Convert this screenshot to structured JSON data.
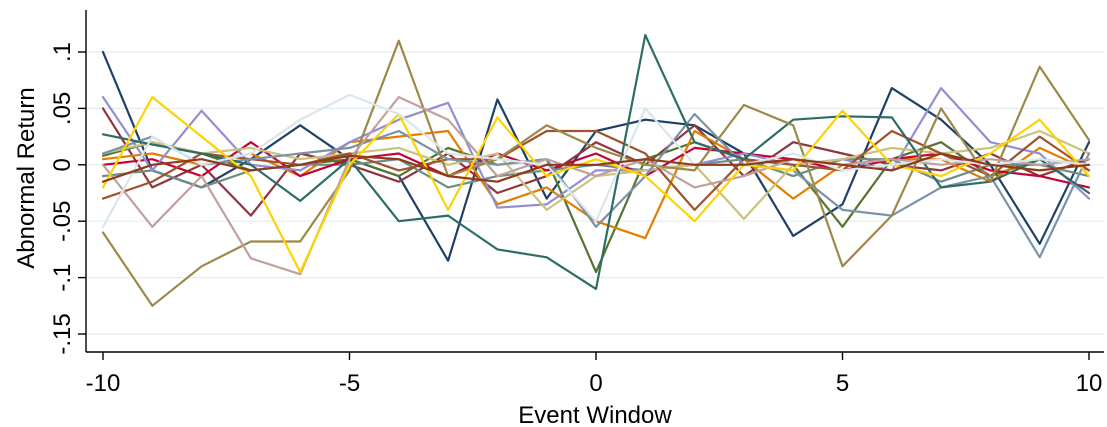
{
  "chart_data": {
    "type": "line",
    "title": "",
    "xlabel": "Event Window",
    "ylabel": "Abnormal Return",
    "xlim": [
      -10,
      10
    ],
    "ylim": [
      -0.15,
      0.1
    ],
    "x_ticks": [
      -10,
      -5,
      0,
      5,
      10
    ],
    "x_tick_labels": [
      "-10",
      "-5",
      "0",
      "5",
      "10"
    ],
    "y_ticks": [
      -0.15,
      -0.1,
      -0.05,
      0,
      0.05,
      0.1
    ],
    "y_tick_labels": [
      "-.15",
      "-.1",
      "-.05",
      "0",
      ".05",
      ".1"
    ],
    "grid": true,
    "legend": "none",
    "x": [
      -10,
      -9,
      -8,
      -7,
      -6,
      -5,
      -4,
      -3,
      -2,
      -1,
      0,
      1,
      2,
      3,
      4,
      5,
      6,
      7,
      8,
      9,
      10
    ],
    "series": [
      {
        "color": "#1f3f66",
        "values": [
          0.1,
          -0.005,
          -0.02,
          0.005,
          0.035,
          0.005,
          -0.01,
          -0.085,
          0.058,
          -0.03,
          0.03,
          0.04,
          0.035,
          0.01,
          -0.063,
          -0.035,
          0.068,
          0.04,
          0.0,
          -0.07,
          0.02
        ]
      },
      {
        "color": "#90353b",
        "values": [
          0.05,
          -0.02,
          0.0,
          -0.045,
          0.01,
          0.0,
          -0.015,
          0.01,
          -0.025,
          -0.01,
          0.02,
          0.0,
          0.035,
          -0.01,
          0.02,
          0.01,
          0.0,
          -0.005,
          0.01,
          -0.01,
          0.005
        ]
      },
      {
        "color": "#55752f",
        "values": [
          0.008,
          0.02,
          0.01,
          -0.005,
          0.0,
          0.005,
          -0.01,
          0.015,
          0.0,
          0.005,
          -0.095,
          0.005,
          0.02,
          0.005,
          0.0,
          -0.055,
          0.005,
          0.02,
          -0.01,
          0.005,
          0.0
        ]
      },
      {
        "color": "#e37e00",
        "values": [
          0.005,
          0.01,
          0.0,
          0.01,
          -0.01,
          0.02,
          0.025,
          0.03,
          -0.035,
          -0.02,
          -0.05,
          -0.065,
          0.03,
          0.005,
          -0.03,
          0.0,
          0.005,
          0.005,
          -0.015,
          0.015,
          -0.005
        ]
      },
      {
        "color": "#6e8e84",
        "values": [
          -0.01,
          -0.005,
          -0.02,
          -0.005,
          0.0,
          0.0,
          0.005,
          -0.02,
          -0.01,
          -0.005,
          0.0,
          -0.005,
          0.0,
          0.005,
          -0.01,
          0.005,
          0.005,
          -0.015,
          0.0,
          0.0,
          -0.01
        ]
      },
      {
        "color": "#c10534",
        "values": [
          0.0,
          0.005,
          -0.01,
          0.02,
          -0.01,
          0.005,
          0.01,
          -0.01,
          0.01,
          -0.005,
          0.01,
          -0.01,
          0.015,
          0.01,
          0.005,
          -0.005,
          0.005,
          0.01,
          -0.005,
          -0.01,
          -0.02
        ]
      },
      {
        "color": "#938dd2",
        "values": [
          0.06,
          -0.005,
          0.048,
          0.0,
          -0.005,
          0.02,
          0.04,
          0.055,
          -0.038,
          -0.035,
          -0.005,
          -0.005,
          0.0,
          0.01,
          0.0,
          0.005,
          -0.005,
          0.068,
          0.02,
          0.01,
          -0.03
        ]
      },
      {
        "color": "#cac27e",
        "values": [
          0.01,
          0.02,
          0.01,
          0.015,
          0.005,
          0.01,
          0.015,
          0.0,
          0.01,
          -0.04,
          -0.01,
          -0.005,
          0.0,
          -0.048,
          0.0,
          0.005,
          0.015,
          0.01,
          0.015,
          0.03,
          0.01
        ]
      },
      {
        "color": "#a0522d",
        "values": [
          -0.03,
          -0.015,
          0.01,
          0.005,
          0.0,
          0.01,
          -0.005,
          0.005,
          0.005,
          0.03,
          0.03,
          0.01,
          -0.04,
          0.005,
          0.0,
          -0.005,
          0.03,
          0.01,
          -0.01,
          0.025,
          -0.005
        ]
      },
      {
        "color": "#7b92a8",
        "values": [
          0.01,
          0.025,
          0.0,
          0.005,
          0.01,
          0.015,
          0.03,
          0.005,
          0.0,
          0.005,
          -0.055,
          -0.01,
          0.045,
          0.0,
          -0.005,
          -0.04,
          -0.045,
          -0.02,
          -0.01,
          -0.082,
          0.01
        ]
      },
      {
        "color": "#2d6d66",
        "values": [
          0.027,
          0.018,
          0.01,
          0.0,
          -0.032,
          0.005,
          -0.05,
          -0.045,
          -0.075,
          -0.082,
          -0.11,
          0.115,
          0.02,
          0.005,
          0.04,
          0.043,
          0.042,
          -0.02,
          -0.015,
          0.005,
          -0.025
        ]
      },
      {
        "color": "#9c8847",
        "values": [
          -0.06,
          -0.125,
          -0.09,
          -0.068,
          -0.068,
          -0.005,
          0.11,
          -0.01,
          0.005,
          0.035,
          0.015,
          0.0,
          -0.005,
          0.053,
          0.035,
          -0.09,
          -0.045,
          0.05,
          -0.015,
          0.087,
          0.022
        ]
      },
      {
        "color": "#bfa19c",
        "values": [
          0.0,
          -0.055,
          -0.01,
          -0.083,
          -0.097,
          0.005,
          0.06,
          0.04,
          -0.01,
          0.005,
          -0.01,
          0.005,
          -0.02,
          -0.01,
          0.005,
          0.0,
          0.005,
          0.0,
          0.005,
          0.0,
          0.005
        ]
      },
      {
        "color": "#ffd200",
        "values": [
          -0.02,
          0.06,
          0.025,
          -0.01,
          -0.095,
          0.0,
          0.045,
          -0.04,
          0.042,
          -0.01,
          0.005,
          -0.01,
          -0.05,
          0.0,
          -0.005,
          0.048,
          0.0,
          -0.01,
          0.01,
          0.04,
          -0.01
        ]
      },
      {
        "color": "#d9e6eb",
        "values": [
          -0.055,
          0.025,
          0.0,
          0.01,
          0.04,
          0.062,
          0.045,
          0.01,
          0.005,
          0.0,
          -0.05,
          0.05,
          0.0,
          0.0,
          0.01,
          -0.005,
          0.0,
          0.005,
          0.0,
          0.005,
          0.0
        ]
      },
      {
        "color": "#8f3b1a",
        "values": [
          -0.015,
          0.0,
          0.005,
          -0.005,
          0.0,
          0.008,
          0.005,
          -0.01,
          -0.015,
          0.0,
          0.0,
          0.005,
          0.0,
          0.0,
          0.005,
          0.0,
          -0.005,
          0.01,
          0.0,
          -0.005,
          0.0
        ]
      }
    ]
  }
}
